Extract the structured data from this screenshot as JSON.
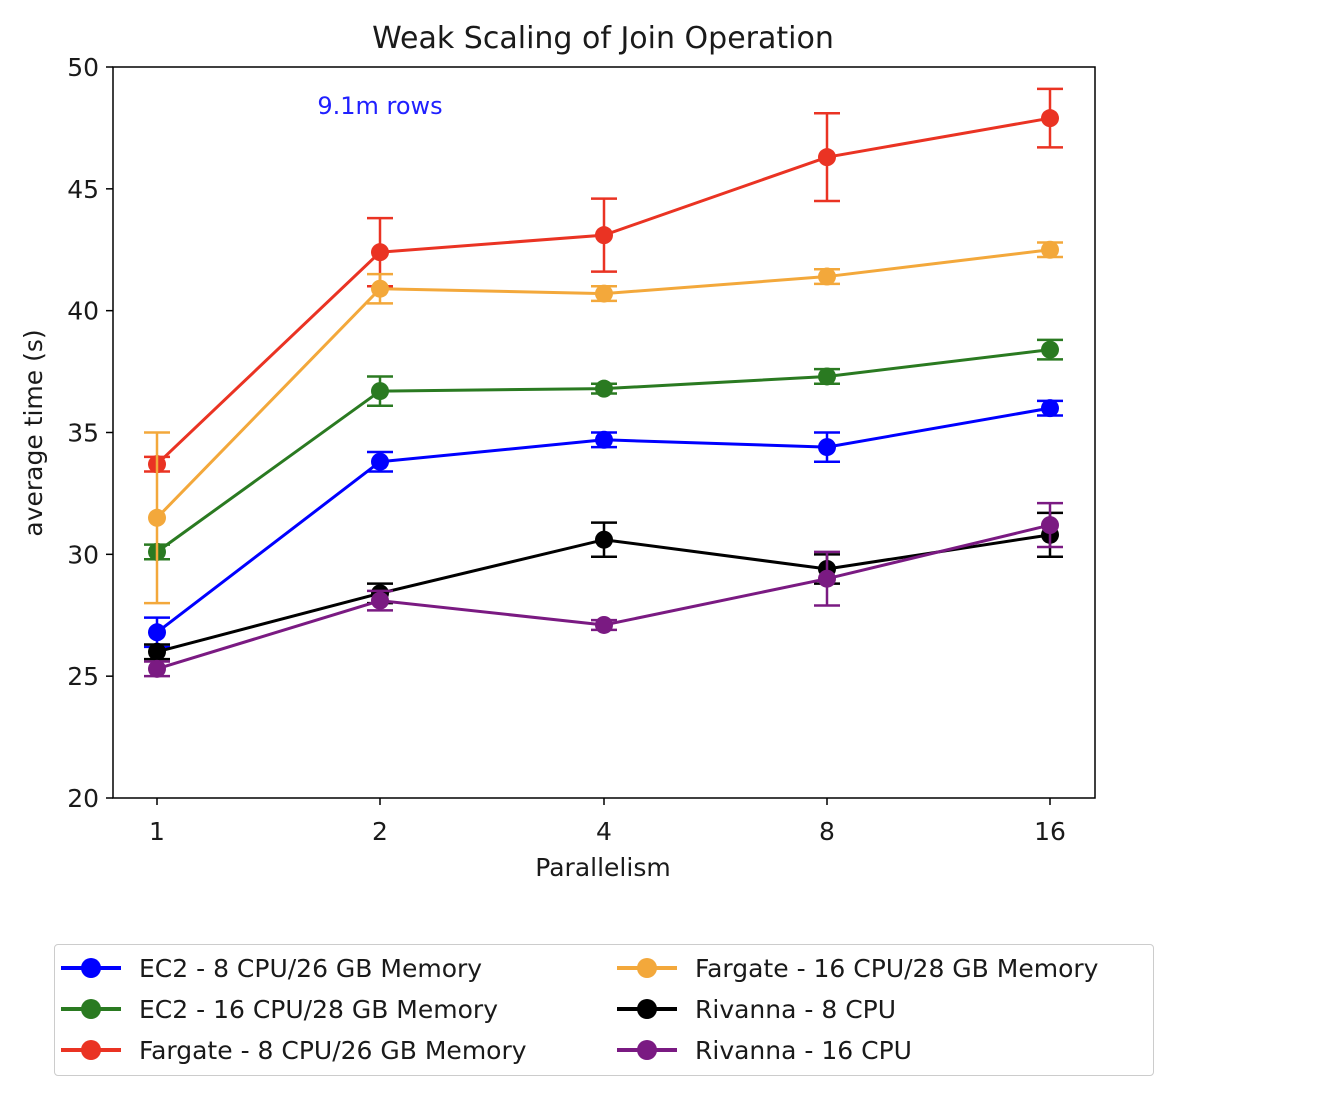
{
  "chart_data": {
    "type": "line",
    "title": "Weak Scaling of Join Operation",
    "xlabel": "Parallelism",
    "ylabel": "average time (s)",
    "annotation": "9.1m rows",
    "annotation_color": "#2020ff",
    "categories": [
      "1",
      "2",
      "4",
      "8",
      "16"
    ],
    "y_ticks": [
      "20",
      "25",
      "30",
      "35",
      "40",
      "45",
      "50"
    ],
    "ylim": [
      20,
      50
    ],
    "grid": false,
    "legend_position": "below",
    "series": [
      {
        "name": "EC2 - 8 CPU/26 GB Memory",
        "color": "#0000ff",
        "values": [
          26.8,
          33.8,
          34.7,
          34.4,
          36.0
        ],
        "errors": [
          0.6,
          0.4,
          0.3,
          0.6,
          0.3
        ]
      },
      {
        "name": "EC2 - 16 CPU/28 GB Memory",
        "color": "#2a7a21",
        "values": [
          30.1,
          36.7,
          36.8,
          37.3,
          38.4
        ],
        "errors": [
          0.3,
          0.6,
          0.2,
          0.3,
          0.4
        ]
      },
      {
        "name": "Fargate - 8 CPU/26 GB Memory",
        "color": "#ea3323",
        "values": [
          33.7,
          42.4,
          43.1,
          46.3,
          47.9
        ],
        "errors": [
          0.3,
          1.4,
          1.5,
          1.8,
          1.2
        ]
      },
      {
        "name": "Fargate - 16 CPU/28 GB Memory",
        "color": "#f3a83b",
        "values": [
          31.5,
          40.9,
          40.7,
          41.4,
          42.5
        ],
        "errors": [
          3.5,
          0.6,
          0.3,
          0.3,
          0.3
        ]
      },
      {
        "name": "Rivanna - 8 CPU",
        "color": "#000000",
        "values": [
          26.0,
          28.4,
          30.6,
          29.4,
          30.8
        ],
        "errors": [
          0.3,
          0.4,
          0.7,
          0.6,
          0.9
        ]
      },
      {
        "name": "Rivanna - 16 CPU",
        "color": "#7a1a82",
        "values": [
          25.3,
          28.1,
          27.1,
          29.0,
          31.2
        ],
        "errors": [
          0.3,
          0.4,
          0.2,
          1.1,
          0.9
        ]
      }
    ]
  }
}
